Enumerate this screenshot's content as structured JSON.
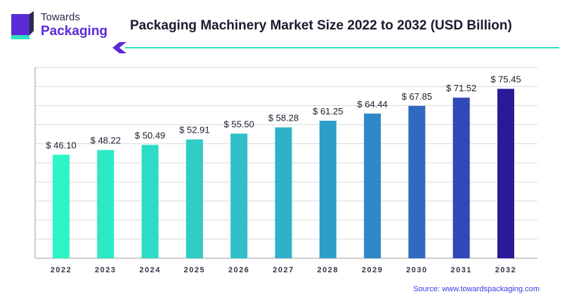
{
  "logo": {
    "line1": "Towards",
    "line2": "Packaging",
    "colors": {
      "dark": "#2b2b4a",
      "purple": "#5a2bd6",
      "teal": "#2fe0c0"
    }
  },
  "title": "Packaging Machinery Market Size 2022 to 2032 (USD Billion)",
  "source": {
    "label": "Source:",
    "url": "www.towardspackaging.com"
  },
  "colors": {
    "accent_line": "#2fe0c0",
    "accent_chevron": "#5a2bd6",
    "grid": "#d9d9d9",
    "axis": "#9e9e9e",
    "bar_start": "#2ef5c6",
    "bar_end": "#2a1a9a"
  },
  "chart_data": {
    "type": "bar",
    "title": "Packaging Machinery Market Size 2022 to 2032 (USD Billion)",
    "categories": [
      "2022",
      "2023",
      "2024",
      "2025",
      "2026",
      "2027",
      "2028",
      "2029",
      "2030",
      "2031",
      "2032"
    ],
    "values": [
      46.1,
      48.22,
      50.49,
      52.91,
      55.5,
      58.28,
      61.25,
      64.44,
      67.85,
      71.52,
      75.45
    ],
    "value_labels": [
      "$ 46.10",
      "$ 48.22",
      "$ 50.49",
      "$ 52.91",
      "$ 55.50",
      "$ 58.28",
      "$ 61.25",
      "$ 64.44",
      "$ 67.85",
      "$ 71.52",
      "$ 75.45"
    ],
    "bar_colors": [
      "#2ef5c6",
      "#2de8c4",
      "#2ddcc4",
      "#2fcdc6",
      "#30bfc8",
      "#2fb0cb",
      "#2e9ec9",
      "#2f88c8",
      "#2f6ac0",
      "#3048b8",
      "#2a1a9a"
    ],
    "xlabel": "",
    "ylabel": "",
    "ylim": [
      0,
      85
    ],
    "grid": true
  }
}
